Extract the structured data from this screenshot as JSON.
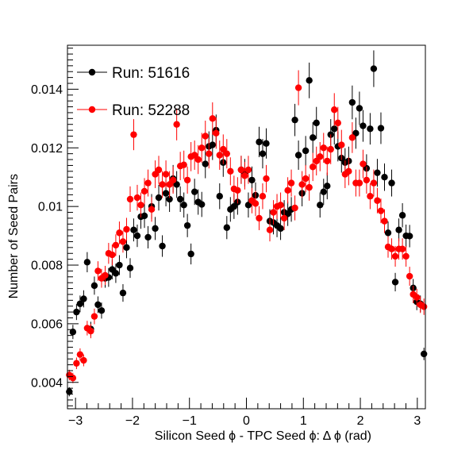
{
  "chart_data": {
    "type": "scatter",
    "xlabel": "Silicon Seed  ϕ - TPC Seed  ϕ: Δ ϕ (rad)",
    "ylabel": "Number of Seed Pairs",
    "xlim": [
      -3.1416,
      3.1416
    ],
    "ylim": [
      0.0031,
      0.0155
    ],
    "x_ticks": [
      -3,
      -2,
      -1,
      0,
      1,
      2,
      3
    ],
    "x_tick_labels": [
      "−3",
      "−2",
      "−1",
      "0",
      "1",
      "2",
      "3"
    ],
    "y_ticks": [
      0.004,
      0.006,
      0.008,
      0.01,
      0.012,
      0.014
    ],
    "y_tick_labels": [
      "0.004",
      "0.006",
      "0.008",
      "0.01",
      "0.012",
      "0.014"
    ],
    "error_bars": true,
    "legend_position": "top-left",
    "series": [
      {
        "name": "Run: 51616",
        "color": "#000000",
        "x": [
          -3.109,
          -3.046,
          -2.983,
          -2.92,
          -2.857,
          -2.795,
          -2.732,
          -2.669,
          -2.606,
          -2.543,
          -2.48,
          -2.419,
          -2.356,
          -2.293,
          -2.23,
          -2.167,
          -2.104,
          -2.041,
          -1.979,
          -1.916,
          -1.853,
          -1.79,
          -1.727,
          -1.664,
          -1.601,
          -1.539,
          -1.476,
          -1.413,
          -1.35,
          -1.287,
          -1.224,
          -1.161,
          -1.098,
          -1.036,
          -0.973,
          -0.91,
          -0.847,
          -0.784,
          -0.721,
          -0.658,
          -0.595,
          -0.532,
          -0.47,
          -0.407,
          -0.344,
          -0.281,
          -0.218,
          -0.155,
          -0.092,
          -0.029,
          0.034,
          0.097,
          0.16,
          0.223,
          0.285,
          0.348,
          0.411,
          0.474,
          0.537,
          0.6,
          0.663,
          0.726,
          0.788,
          0.851,
          0.914,
          0.977,
          1.04,
          1.103,
          1.166,
          1.229,
          1.292,
          1.355,
          1.418,
          1.48,
          1.543,
          1.606,
          1.669,
          1.732,
          1.795,
          1.858,
          1.921,
          1.984,
          2.047,
          2.109,
          2.172,
          2.235,
          2.298,
          2.361,
          2.424,
          2.487,
          2.55,
          2.613,
          2.676,
          2.739,
          2.802,
          2.865,
          2.928,
          2.991,
          3.054,
          3.116
        ],
        "y": [
          0.00368,
          0.00572,
          0.0064,
          0.00668,
          0.00685,
          0.0081,
          0.00582,
          0.0073,
          0.00665,
          0.00645,
          0.00755,
          0.00758,
          0.00785,
          0.00772,
          0.008,
          0.00705,
          0.0086,
          0.0079,
          0.0092,
          0.009,
          0.00965,
          0.00968,
          0.00895,
          0.01,
          0.00925,
          0.0103,
          0.00865,
          0.01045,
          0.01025,
          0.01095,
          0.01075,
          0.01025,
          0.01005,
          0.00935,
          0.00838,
          0.0105,
          0.01015,
          0.01007,
          0.01145,
          0.01205,
          0.0121,
          0.0126,
          0.01035,
          0.0115,
          0.00928,
          0.0099,
          0.01,
          0.01015,
          0.01125,
          0.01115,
          0.01005,
          0.0109,
          0.01038,
          0.0122,
          0.0118,
          0.01215,
          0.0095,
          0.00945,
          0.00935,
          0.00925,
          0.0098,
          0.00975,
          0.0099,
          0.01295,
          0.01175,
          0.01045,
          0.0119,
          0.0143,
          0.01235,
          0.01285,
          0.01005,
          0.0105,
          0.0107,
          0.01245,
          0.01265,
          0.01205,
          0.01165,
          0.0115,
          0.01155,
          0.01355,
          0.0125,
          0.01335,
          0.01275,
          0.0113,
          0.01265,
          0.0147,
          0.01115,
          0.01267,
          0.011,
          0.0091,
          0.0108,
          0.00742,
          0.0092,
          0.0097,
          0.009,
          0.00899,
          0.00722,
          0.00675,
          0.00668,
          0.00497
        ]
      },
      {
        "name": "Run: 52288",
        "color": "#ff0000",
        "x": [
          -3.109,
          -3.046,
          -2.983,
          -2.92,
          -2.857,
          -2.795,
          -2.732,
          -2.669,
          -2.606,
          -2.543,
          -2.48,
          -2.419,
          -2.356,
          -2.293,
          -2.23,
          -2.167,
          -2.104,
          -2.041,
          -1.979,
          -1.916,
          -1.853,
          -1.79,
          -1.727,
          -1.664,
          -1.601,
          -1.539,
          -1.476,
          -1.413,
          -1.35,
          -1.287,
          -1.224,
          -1.161,
          -1.098,
          -1.036,
          -0.973,
          -0.91,
          -0.847,
          -0.784,
          -0.721,
          -0.658,
          -0.595,
          -0.532,
          -0.47,
          -0.407,
          -0.344,
          -0.281,
          -0.218,
          -0.155,
          -0.092,
          -0.029,
          0.034,
          0.097,
          0.16,
          0.223,
          0.285,
          0.348,
          0.411,
          0.474,
          0.537,
          0.6,
          0.663,
          0.726,
          0.788,
          0.851,
          0.914,
          0.977,
          1.04,
          1.103,
          1.166,
          1.229,
          1.292,
          1.355,
          1.418,
          1.48,
          1.543,
          1.606,
          1.669,
          1.732,
          1.795,
          1.858,
          1.921,
          1.984,
          2.047,
          2.109,
          2.172,
          2.235,
          2.298,
          2.361,
          2.424,
          2.487,
          2.55,
          2.613,
          2.676,
          2.739,
          2.802,
          2.865,
          2.928,
          2.991,
          3.054,
          3.116
        ],
        "y": [
          0.00425,
          0.00415,
          0.00465,
          0.00495,
          0.00475,
          0.00585,
          0.00575,
          0.00625,
          0.0078,
          0.00755,
          0.00765,
          0.0084,
          0.00835,
          0.00868,
          0.0091,
          0.0088,
          0.00922,
          0.01025,
          0.01245,
          0.0103,
          0.01005,
          0.01052,
          0.0108,
          0.0099,
          0.0111,
          0.01125,
          0.01075,
          0.0111,
          0.01075,
          0.0109,
          0.0128,
          0.01138,
          0.01142,
          0.0109,
          0.0117,
          0.01175,
          0.0116,
          0.012,
          0.0124,
          0.0118,
          0.013,
          0.0125,
          0.01175,
          0.01195,
          0.0118,
          0.0112,
          0.0106,
          0.01055,
          0.01125,
          0.01105,
          0.01125,
          0.0102,
          0.0101,
          0.0096,
          0.01035,
          0.01095,
          0.0092,
          0.0098,
          0.01,
          0.01005,
          0.0096,
          0.01055,
          0.0108,
          0.00995,
          0.01405,
          0.01075,
          0.01095,
          0.01065,
          0.01135,
          0.01155,
          0.0117,
          0.012,
          0.01155,
          0.01195,
          0.0133,
          0.01285,
          0.0121,
          0.0111,
          0.0112,
          0.01235,
          0.0108,
          0.0108,
          0.01145,
          0.0109,
          0.01035,
          0.0108,
          0.0102,
          0.00985,
          0.0095,
          0.00862,
          0.00855,
          0.0083,
          0.00855,
          0.00855,
          0.0083,
          0.00762,
          0.007,
          0.0069,
          0.00665,
          0.00658
        ]
      }
    ]
  }
}
